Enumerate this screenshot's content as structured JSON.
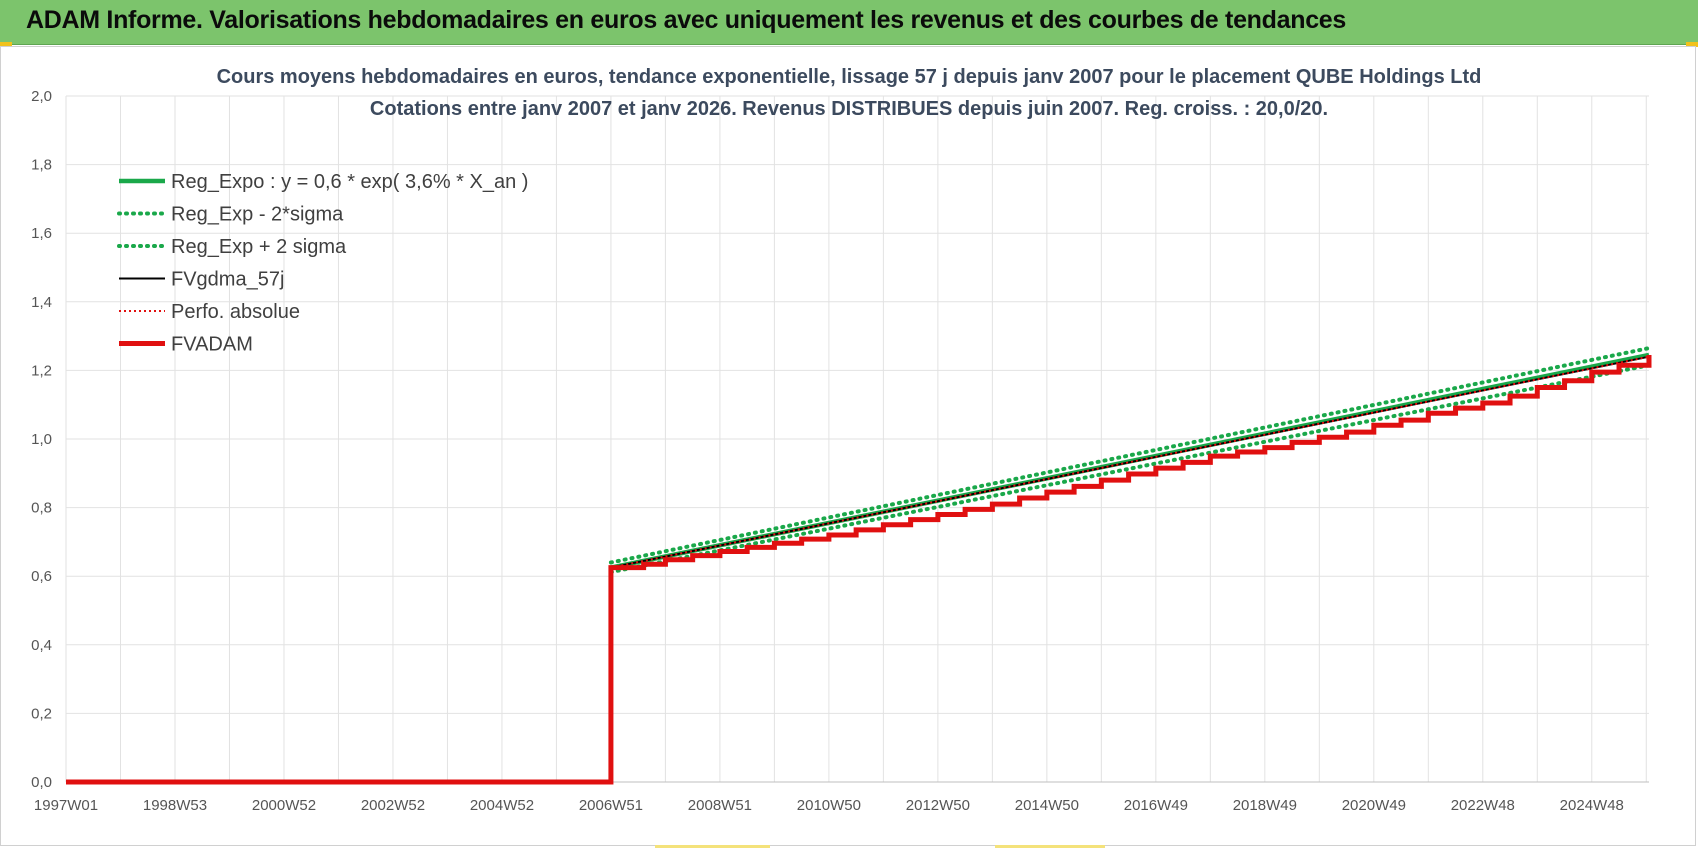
{
  "header": {
    "title": "ADAM Informe. Valorisations hebdomadaires en euros avec uniquement les revenus et des courbes de tendances",
    "background_color": "#7cc46c"
  },
  "chart_data": {
    "type": "line",
    "title": [
      "Cours moyens  hebdomadaires en euros, tendance exponentielle, lissage 57 j depuis janv 2007  pour le placement QUBE Holdings Ltd",
      "Cotations entre janv 2007 et janv 2026. Revenus DISTRIBUES depuis juin 2007. Reg. croiss. : 20,0/20."
    ],
    "xlabel": "",
    "ylabel": "",
    "x_range": [
      1997.0,
      2026.05
    ],
    "ylim": [
      0,
      2.0
    ],
    "y_ticks": [
      "0,0",
      "0,2",
      "0,4",
      "0,6",
      "0,8",
      "1,0",
      "1,2",
      "1,4",
      "1,6",
      "1,8",
      "2,0"
    ],
    "x_ticks": [
      {
        "label": "1997W01",
        "x": 1997.0
      },
      {
        "label": "1998W53",
        "x": 1999.0
      },
      {
        "label": "2000W52",
        "x": 2001.0
      },
      {
        "label": "2002W52",
        "x": 2003.0
      },
      {
        "label": "2004W52",
        "x": 2005.0
      },
      {
        "label": "2006W51",
        "x": 2007.0
      },
      {
        "label": "2008W51",
        "x": 2009.0
      },
      {
        "label": "2010W50",
        "x": 2011.0
      },
      {
        "label": "2012W50",
        "x": 2013.0
      },
      {
        "label": "2014W50",
        "x": 2015.0
      },
      {
        "label": "2016W49",
        "x": 2017.0
      },
      {
        "label": "2018W49",
        "x": 2019.0
      },
      {
        "label": "2020W49",
        "x": 2021.0
      },
      {
        "label": "2022W48",
        "x": 2023.0
      },
      {
        "label": "2024W48",
        "x": 2025.0
      }
    ],
    "grid": true,
    "legend_position": "top-left",
    "series": [
      {
        "name": "Reg_Expo : y = 0,6 * exp( 3,6% *  X_an )",
        "color": "#1aa84a",
        "style": "solid",
        "x": [
          2007.0,
          2026.05
        ],
        "y": [
          0.625,
          1.245
        ]
      },
      {
        "name": "Reg_Exp - 2*sigma",
        "color": "#1aa84a",
        "style": "dotted",
        "x": [
          2007.0,
          2026.05
        ],
        "y": [
          0.612,
          1.215
        ]
      },
      {
        "name": "Reg_Exp + 2 sigma",
        "color": "#1aa84a",
        "style": "dotted",
        "x": [
          2007.0,
          2026.05
        ],
        "y": [
          0.64,
          1.265
        ]
      },
      {
        "name": "FVgdma_57j",
        "color": "#000000",
        "style": "solid",
        "x": [
          1997.0,
          2007.0,
          2007.0,
          2026.05
        ],
        "y": [
          0.0,
          0.0,
          0.625,
          1.24
        ]
      },
      {
        "name": "Perfo. absolue",
        "color": "#e01010",
        "style": "dotted",
        "x": [
          1997.0,
          2007.0,
          2007.0,
          2026.05
        ],
        "y": [
          0.0,
          0.0,
          0.625,
          1.24
        ]
      },
      {
        "name": "FVADAM",
        "color": "#e01010",
        "style": "thick",
        "x": [
          1997.0,
          2007.0,
          2007.0,
          2007.6,
          2008.0,
          2008.5,
          2009.0,
          2009.5,
          2010.0,
          2010.5,
          2011.0,
          2011.5,
          2012.0,
          2012.5,
          2013.0,
          2013.5,
          2014.0,
          2014.5,
          2015.0,
          2015.5,
          2016.0,
          2016.5,
          2017.0,
          2017.5,
          2018.0,
          2018.5,
          2019.0,
          2019.5,
          2020.0,
          2020.5,
          2021.0,
          2021.5,
          2022.0,
          2022.5,
          2023.0,
          2023.5,
          2024.0,
          2024.5,
          2025.0,
          2025.5,
          2026.05
        ],
        "y": [
          0.0,
          0.0,
          0.625,
          0.635,
          0.648,
          0.66,
          0.672,
          0.684,
          0.696,
          0.708,
          0.72,
          0.735,
          0.75,
          0.765,
          0.78,
          0.795,
          0.81,
          0.828,
          0.845,
          0.862,
          0.88,
          0.898,
          0.915,
          0.932,
          0.95,
          0.962,
          0.975,
          0.99,
          1.005,
          1.02,
          1.04,
          1.055,
          1.075,
          1.09,
          1.105,
          1.125,
          1.15,
          1.17,
          1.195,
          1.215,
          1.245
        ]
      }
    ]
  }
}
